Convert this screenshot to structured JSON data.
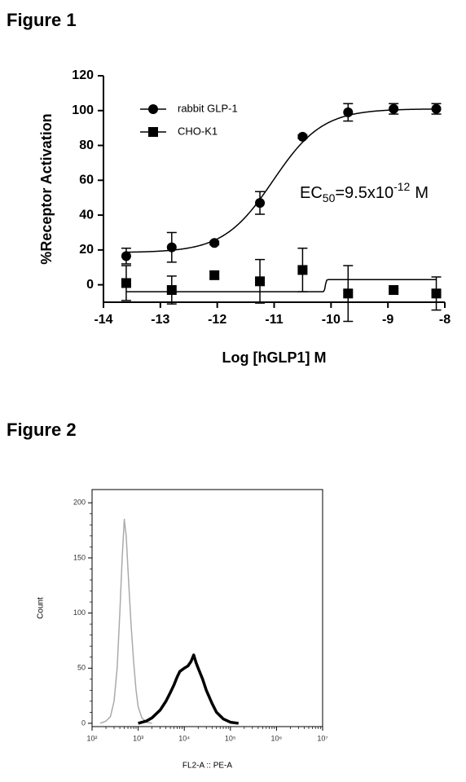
{
  "chart_data": [
    {
      "type": "scatter",
      "heading": "Figure 1",
      "xlabel": "Log [hGLP1] M",
      "ylabel": "%Receptor Activation",
      "xlim": [
        -14,
        -8
      ],
      "xticks": [
        -14,
        -13,
        -12,
        -11,
        -10,
        -9,
        -8
      ],
      "ylim": [
        -10,
        120
      ],
      "yticks": [
        0,
        20,
        40,
        60,
        80,
        100,
        120
      ],
      "x": [
        -13.6,
        -12.8,
        -12.05,
        -11.25,
        -10.5,
        -9.7,
        -8.9,
        -8.15
      ],
      "series": [
        {
          "name": "rabbit GLP-1",
          "color": "#000000",
          "marker": "circle",
          "values": [
            16.5,
            21.5,
            24,
            47,
            85,
            99,
            101,
            101
          ],
          "errors": [
            4.5,
            8.5,
            1,
            6.5,
            1,
            5,
            3,
            3
          ],
          "fit": {
            "bottom": 18.5,
            "top": 101,
            "log_ec50": -11.02,
            "hill": 1
          }
        },
        {
          "name": "CHO-K1",
          "color": "#000000",
          "marker": "square",
          "values": [
            1,
            -3,
            5.5,
            2,
            8.5,
            -5,
            -3,
            -5
          ],
          "errors": [
            10,
            8,
            2,
            12.5,
            12.5,
            16,
            1,
            9.5
          ],
          "fit": {
            "bottom": -4,
            "top": 3,
            "log_ec50": -10.1,
            "hill": 50
          }
        }
      ],
      "legend": "upper left",
      "annotation": {
        "text": "EC",
        "sub": "50",
        "mid": "=9.5x10",
        "sup": "-12",
        "unit": "M"
      }
    },
    {
      "type": "line",
      "heading": "Figure 2",
      "xlabel": "FL2-A :: PE-A",
      "ylabel": "Count",
      "xscale": "log",
      "xlim": [
        100,
        10000000
      ],
      "xticks": [
        {
          "value": 100,
          "label": "10²"
        },
        {
          "value": 1000,
          "label": "10³"
        },
        {
          "value": 10000,
          "label": "10⁴"
        },
        {
          "value": 100000,
          "label": "10⁵"
        },
        {
          "value": 1000000,
          "label": "10⁶"
        },
        {
          "value": 10000000,
          "label": "10⁷"
        }
      ],
      "ylim": [
        -3,
        212
      ],
      "yticks": [
        0,
        50,
        100,
        150,
        200
      ],
      "series": [
        {
          "color": "#aaaaaa",
          "linewidth": 1.5,
          "x": [
            150,
            200,
            250,
            300,
            350,
            400,
            450,
            500,
            550,
            600,
            700,
            800,
            900,
            1000,
            1200,
            1500,
            2000
          ],
          "values": [
            0,
            2,
            6,
            20,
            50,
            100,
            150,
            185,
            170,
            140,
            90,
            55,
            30,
            15,
            5,
            1,
            0
          ]
        },
        {
          "color": "#000000",
          "linewidth": 3.5,
          "x": [
            1000,
            1500,
            2000,
            3000,
            4000,
            5000,
            6000,
            7000,
            8000,
            10000,
            12000,
            14000,
            16000,
            18000,
            20000,
            25000,
            30000,
            40000,
            50000,
            70000,
            100000,
            150000
          ],
          "values": [
            0,
            2,
            5,
            12,
            20,
            28,
            35,
            42,
            47,
            50,
            52,
            56,
            62,
            55,
            50,
            40,
            30,
            18,
            10,
            4,
            1,
            0
          ]
        }
      ]
    }
  ]
}
